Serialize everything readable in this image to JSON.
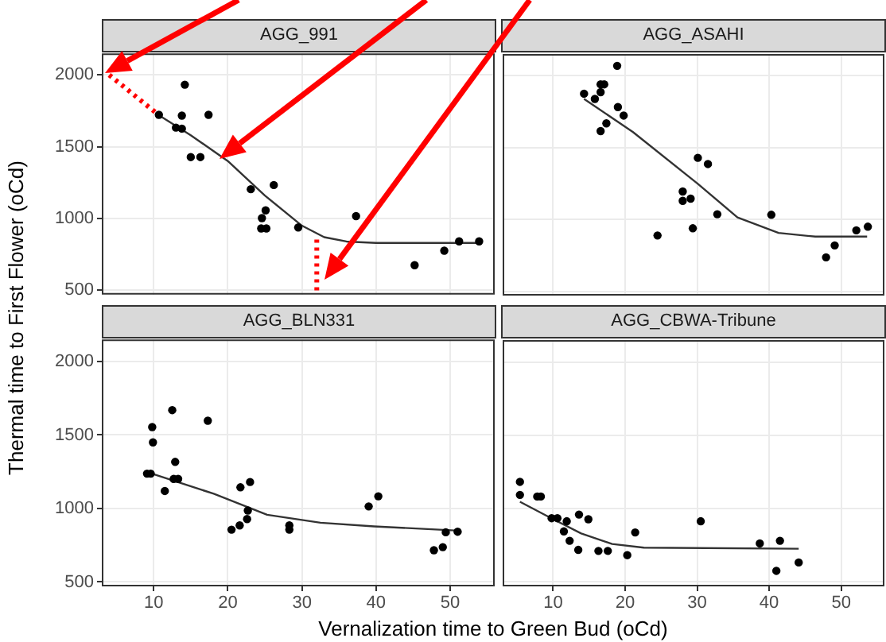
{
  "chart_data": [
    {
      "type": "scatter",
      "title": "AGG_991",
      "ylabel": "Thermal time to First Flower (oCd)",
      "xlim": [
        3,
        56
      ],
      "ylim": [
        470,
        2150
      ],
      "xticks": [
        10,
        20,
        30,
        40,
        50
      ],
      "yticks": [
        500,
        1000,
        1500,
        2000
      ],
      "grid": true,
      "tick_labels": "y",
      "series": [
        {
          "type": "scatter",
          "color": "#000000",
          "marker": "circle",
          "x": [
            10.7,
            14.2,
            13.0,
            13.8,
            13.8,
            17.4,
            15.0,
            16.3,
            23.1,
            26.2,
            24.6,
            25.1,
            24.5,
            25.2,
            29.5,
            37.3,
            45.2,
            49.2,
            51.2,
            53.9
          ],
          "values": [
            1722,
            1932,
            1633,
            1626,
            1717,
            1722,
            1428,
            1428,
            1204,
            1233,
            1003,
            1057,
            931,
            931,
            938,
            1017,
            675,
            776,
            841,
            841
          ]
        },
        {
          "type": "line",
          "color": "#333333",
          "marker": "none",
          "line_style": "solid",
          "x": [
            10.7,
            15,
            20,
            25,
            30,
            33,
            36,
            40,
            54
          ],
          "values": [
            1720,
            1580,
            1400,
            1160,
            950,
            870,
            840,
            830,
            830
          ]
        },
        {
          "type": "line",
          "color": "#ff0000",
          "marker": "none",
          "line_style": "dotted",
          "x": [
            4,
            10.7
          ],
          "values": [
            2000,
            1720
          ]
        },
        {
          "type": "line",
          "color": "#ff0000",
          "marker": "none",
          "line_style": "dotted",
          "x": [
            32,
            32
          ],
          "values": [
            500,
            860
          ]
        }
      ]
    },
    {
      "type": "scatter",
      "title": "AGG_ASAHI",
      "xlim": [
        3,
        56
      ],
      "ylim": [
        470,
        2150
      ],
      "xticks": [
        10,
        20,
        30,
        40,
        50
      ],
      "yticks": [
        500,
        1000,
        1500,
        2000
      ],
      "grid": true,
      "tick_labels": false,
      "series": [
        {
          "type": "scatter",
          "color": "#000000",
          "marker": "circle",
          "x": [
            14.3,
            15.8,
            16.6,
            17.1,
            16.6,
            18.9,
            19.0,
            19.8,
            17.4,
            16.6,
            30.1,
            31.5,
            28.0,
            28.0,
            29.1,
            32.8,
            24.5,
            29.4,
            40.3,
            47.9,
            49.1,
            52.1,
            53.7
          ],
          "values": [
            1874,
            1838,
            1939,
            1939,
            1885,
            2068,
            1781,
            1722,
            1668,
            1614,
            1428,
            1385,
            1194,
            1129,
            1144,
            1036,
            888,
            938,
            1032,
            736,
            819,
            924,
            949
          ]
        },
        {
          "type": "line",
          "color": "#333333",
          "marker": "none",
          "line_style": "solid",
          "x": [
            14.3,
            21.1,
            30.1,
            35.6,
            41.3,
            46.4,
            53.6
          ],
          "values": [
            1838,
            1607,
            1247,
            1014,
            906,
            880,
            880
          ]
        }
      ]
    },
    {
      "type": "scatter",
      "title": "AGG_BLN331",
      "xlim": [
        3,
        56
      ],
      "ylim": [
        470,
        2150
      ],
      "xticks": [
        10,
        20,
        30,
        40,
        50
      ],
      "yticks": [
        500,
        1000,
        1500,
        2000
      ],
      "grid": true,
      "xlabel": "Vernalization time to Green Bud (oCd)",
      "series": [
        {
          "type": "scatter",
          "color": "#000000",
          "marker": "circle",
          "x": [
            9.1,
            9.6,
            9.8,
            9.9,
            11.5,
            12.5,
            12.9,
            12.7,
            13.3,
            17.3,
            20.5,
            21.6,
            21.7,
            22.7,
            22.6,
            23.0,
            28.3,
            28.3,
            39.0,
            40.3,
            47.8,
            49.0,
            49.4,
            51.0
          ],
          "values": [
            1237,
            1237,
            1554,
            1450,
            1119,
            1669,
            1317,
            1201,
            1201,
            1597,
            856,
            885,
            1144,
            986,
            928,
            1180,
            885,
            856,
            1014,
            1083,
            716,
            737,
            838,
            842
          ]
        },
        {
          "type": "line",
          "color": "#333333",
          "marker": "none",
          "line_style": "solid",
          "x": [
            9.6,
            18.1,
            25.3,
            32.5,
            39.7,
            51.2
          ],
          "values": [
            1240,
            1100,
            957,
            903,
            878,
            849
          ]
        }
      ]
    },
    {
      "type": "scatter",
      "title": "AGG_CBWA-Tribune",
      "xlim": [
        3,
        56
      ],
      "ylim": [
        470,
        2150
      ],
      "xticks": [
        10,
        20,
        30,
        40,
        50
      ],
      "yticks": [
        500,
        1000,
        1500,
        2000
      ],
      "grid": true,
      "tick_labels": "x",
      "series": [
        {
          "type": "scatter",
          "color": "#000000",
          "marker": "circle",
          "x": [
            5.4,
            5.4,
            7.8,
            8.3,
            9.8,
            10.6,
            11.9,
            11.5,
            12.3,
            13.6,
            14.9,
            13.5,
            16.3,
            17.6,
            20.3,
            21.4,
            30.5,
            38.7,
            41.5,
            41.0,
            44.1
          ],
          "values": [
            1183,
            1094,
            1083,
            1083,
            935,
            935,
            914,
            845,
            781,
            960,
            928,
            719,
            712,
            712,
            683,
            838,
            914,
            763,
            781,
            576,
            633
          ]
        },
        {
          "type": "line",
          "color": "#333333",
          "marker": "none",
          "line_style": "solid",
          "x": [
            5.4,
            9.6,
            13.9,
            18.2,
            22.6,
            44.1
          ],
          "values": [
            1047,
            939,
            831,
            759,
            734,
            727
          ]
        }
      ]
    }
  ]
}
